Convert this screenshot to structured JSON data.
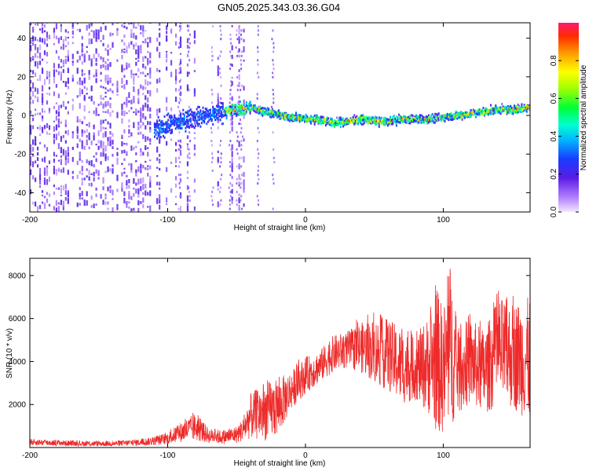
{
  "title": "GN05.2025.343.03.36.G04",
  "colors": {
    "snr_line": "#ee2b2b",
    "axis": "#000000",
    "background": "#ffffff"
  },
  "chart_data": [
    {
      "type": "heatmap",
      "name": "spectrogram",
      "xlabel": "Height of straight line (km)",
      "ylabel": "Frequency (Hz)",
      "xlim": [
        -200,
        163
      ],
      "ylim": [
        -50,
        48
      ],
      "xticks": [
        -200,
        -100,
        0,
        100
      ],
      "xtick_labels": [
        "-200",
        "-100",
        "0",
        "100"
      ],
      "yticks": [
        -40,
        -20,
        0,
        20,
        40
      ],
      "ytick_labels": [
        "-40",
        "-20",
        "0",
        "20",
        "40"
      ],
      "ridge_x": [
        -110,
        -100,
        -90,
        -80,
        -70,
        -60,
        -50,
        -40,
        -30,
        -20,
        -10,
        0,
        10,
        20,
        30,
        40,
        50,
        60,
        70,
        80,
        90,
        100,
        110,
        120,
        130,
        140,
        150,
        160
      ],
      "ridge_freq": [
        -8,
        -5,
        -3,
        -1,
        0,
        2,
        3,
        4,
        2,
        0,
        -1,
        -2,
        -2,
        -4,
        -3,
        -2,
        -3,
        -3,
        -2,
        -2,
        -2,
        -1,
        0,
        1,
        2,
        3,
        3,
        4
      ],
      "noise_region_x": [
        -200,
        -45
      ],
      "colorbar": {
        "label": "Normalized spectral amplitude",
        "ticks": [
          0.0,
          0.2,
          0.4,
          0.6,
          0.8
        ],
        "tick_labels": [
          "0.0",
          "0.2",
          "0.4",
          "0.6",
          "0.8"
        ],
        "range": [
          0.0,
          1.0
        ]
      }
    },
    {
      "type": "line",
      "name": "snr",
      "xlabel": "Height of straight line (km)",
      "ylabel": "SNR (10 * v/v)",
      "xlim": [
        -200,
        163
      ],
      "ylim": [
        0,
        8800
      ],
      "xticks": [
        -200,
        -100,
        0,
        100
      ],
      "xtick_labels": [
        "-200",
        "-100",
        "0",
        "100"
      ],
      "yticks": [
        2000,
        4000,
        6000,
        8000
      ],
      "ytick_labels": [
        "2000",
        "4000",
        "6000",
        "8000"
      ],
      "envelope_x": [
        -200,
        -180,
        -160,
        -140,
        -120,
        -110,
        -100,
        -90,
        -80,
        -70,
        -60,
        -50,
        -45,
        -40,
        -30,
        -20,
        -10,
        0,
        10,
        20,
        30,
        40,
        50,
        60,
        70,
        80,
        90,
        95,
        100,
        105,
        110,
        120,
        130,
        140,
        150,
        163
      ],
      "envelope_low": [
        100,
        80,
        60,
        60,
        80,
        100,
        150,
        250,
        300,
        200,
        150,
        200,
        300,
        400,
        300,
        500,
        1800,
        2500,
        3000,
        3500,
        3700,
        3500,
        3000,
        2600,
        2000,
        2200,
        1500,
        700,
        600,
        900,
        1500,
        2000,
        1500,
        2000,
        1800,
        1200
      ],
      "envelope_high": [
        400,
        350,
        300,
        300,
        400,
        500,
        700,
        1200,
        1600,
        900,
        800,
        1000,
        1400,
        2500,
        3000,
        3200,
        3600,
        4200,
        4500,
        5200,
        5400,
        5800,
        6000,
        6000,
        5500,
        5200,
        6200,
        7500,
        6500,
        8600,
        5500,
        6000,
        5500,
        7000,
        6800,
        7000
      ]
    }
  ]
}
